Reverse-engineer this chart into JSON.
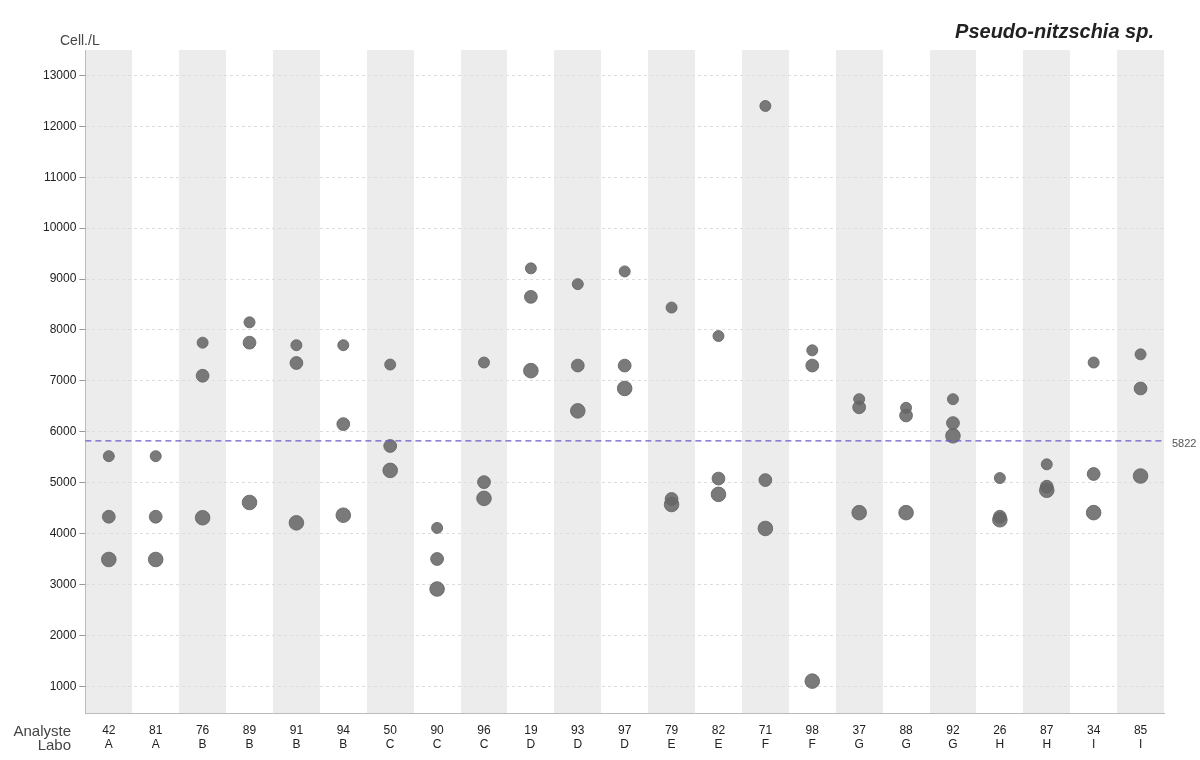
{
  "chart_data": {
    "type": "scatter",
    "title": "Pseudo-nitzschia sp.",
    "ylabel": "Cell./L",
    "xlabel": "Analyste\nLabo",
    "categories": [
      "42\nA",
      "81\nA",
      "76\nB",
      "89\nB",
      "91\nB",
      "94\nB",
      "50\nC",
      "90\nC",
      "96\nC",
      "19\nD",
      "93\nD",
      "97\nD",
      "79\nE",
      "82\nE",
      "71\nF",
      "98\nF",
      "37\nG",
      "88\nG",
      "92\nG",
      "26\nH",
      "87\nH",
      "34\nI",
      "85\nI"
    ],
    "series": [
      {
        "color": "#666666",
        "values": [
          5520,
          5520,
          7750,
          8150,
          7700,
          7700,
          7320,
          4110,
          7360,
          9210,
          8900,
          9150,
          8440,
          7880,
          12400,
          7600,
          6640,
          6470,
          6640,
          5090,
          5360,
          7360,
          7520
        ]
      },
      {
        "color": "#666666",
        "values": [
          4330,
          4330,
          7100,
          7750,
          7350,
          6150,
          5720,
          3500,
          5010,
          8650,
          7300,
          7300,
          4680,
          5080,
          5050,
          7300,
          6480,
          6320,
          6170,
          4330,
          4920,
          5170,
          6850
        ]
      },
      {
        "color": "#666666",
        "values": [
          3490,
          3490,
          4310,
          4610,
          4210,
          4360,
          5240,
          2910,
          4690,
          7200,
          6410,
          6850,
          4570,
          4770,
          4100,
          1100,
          4410,
          4410,
          5920,
          4270,
          4850,
          4410,
          5130
        ]
      }
    ],
    "ylim": [
      470,
      13500
    ],
    "yticks": [
      1000,
      2000,
      3000,
      4000,
      5000,
      6000,
      7000,
      8000,
      9000,
      10000,
      11000,
      12000,
      13000
    ],
    "ref_lines": [
      {
        "axis": "y",
        "value": 5822,
        "label": "5822",
        "color": "#6a5acd",
        "line_style": "dashed"
      }
    ],
    "grid": "y",
    "legend": false,
    "marker": "circle"
  }
}
